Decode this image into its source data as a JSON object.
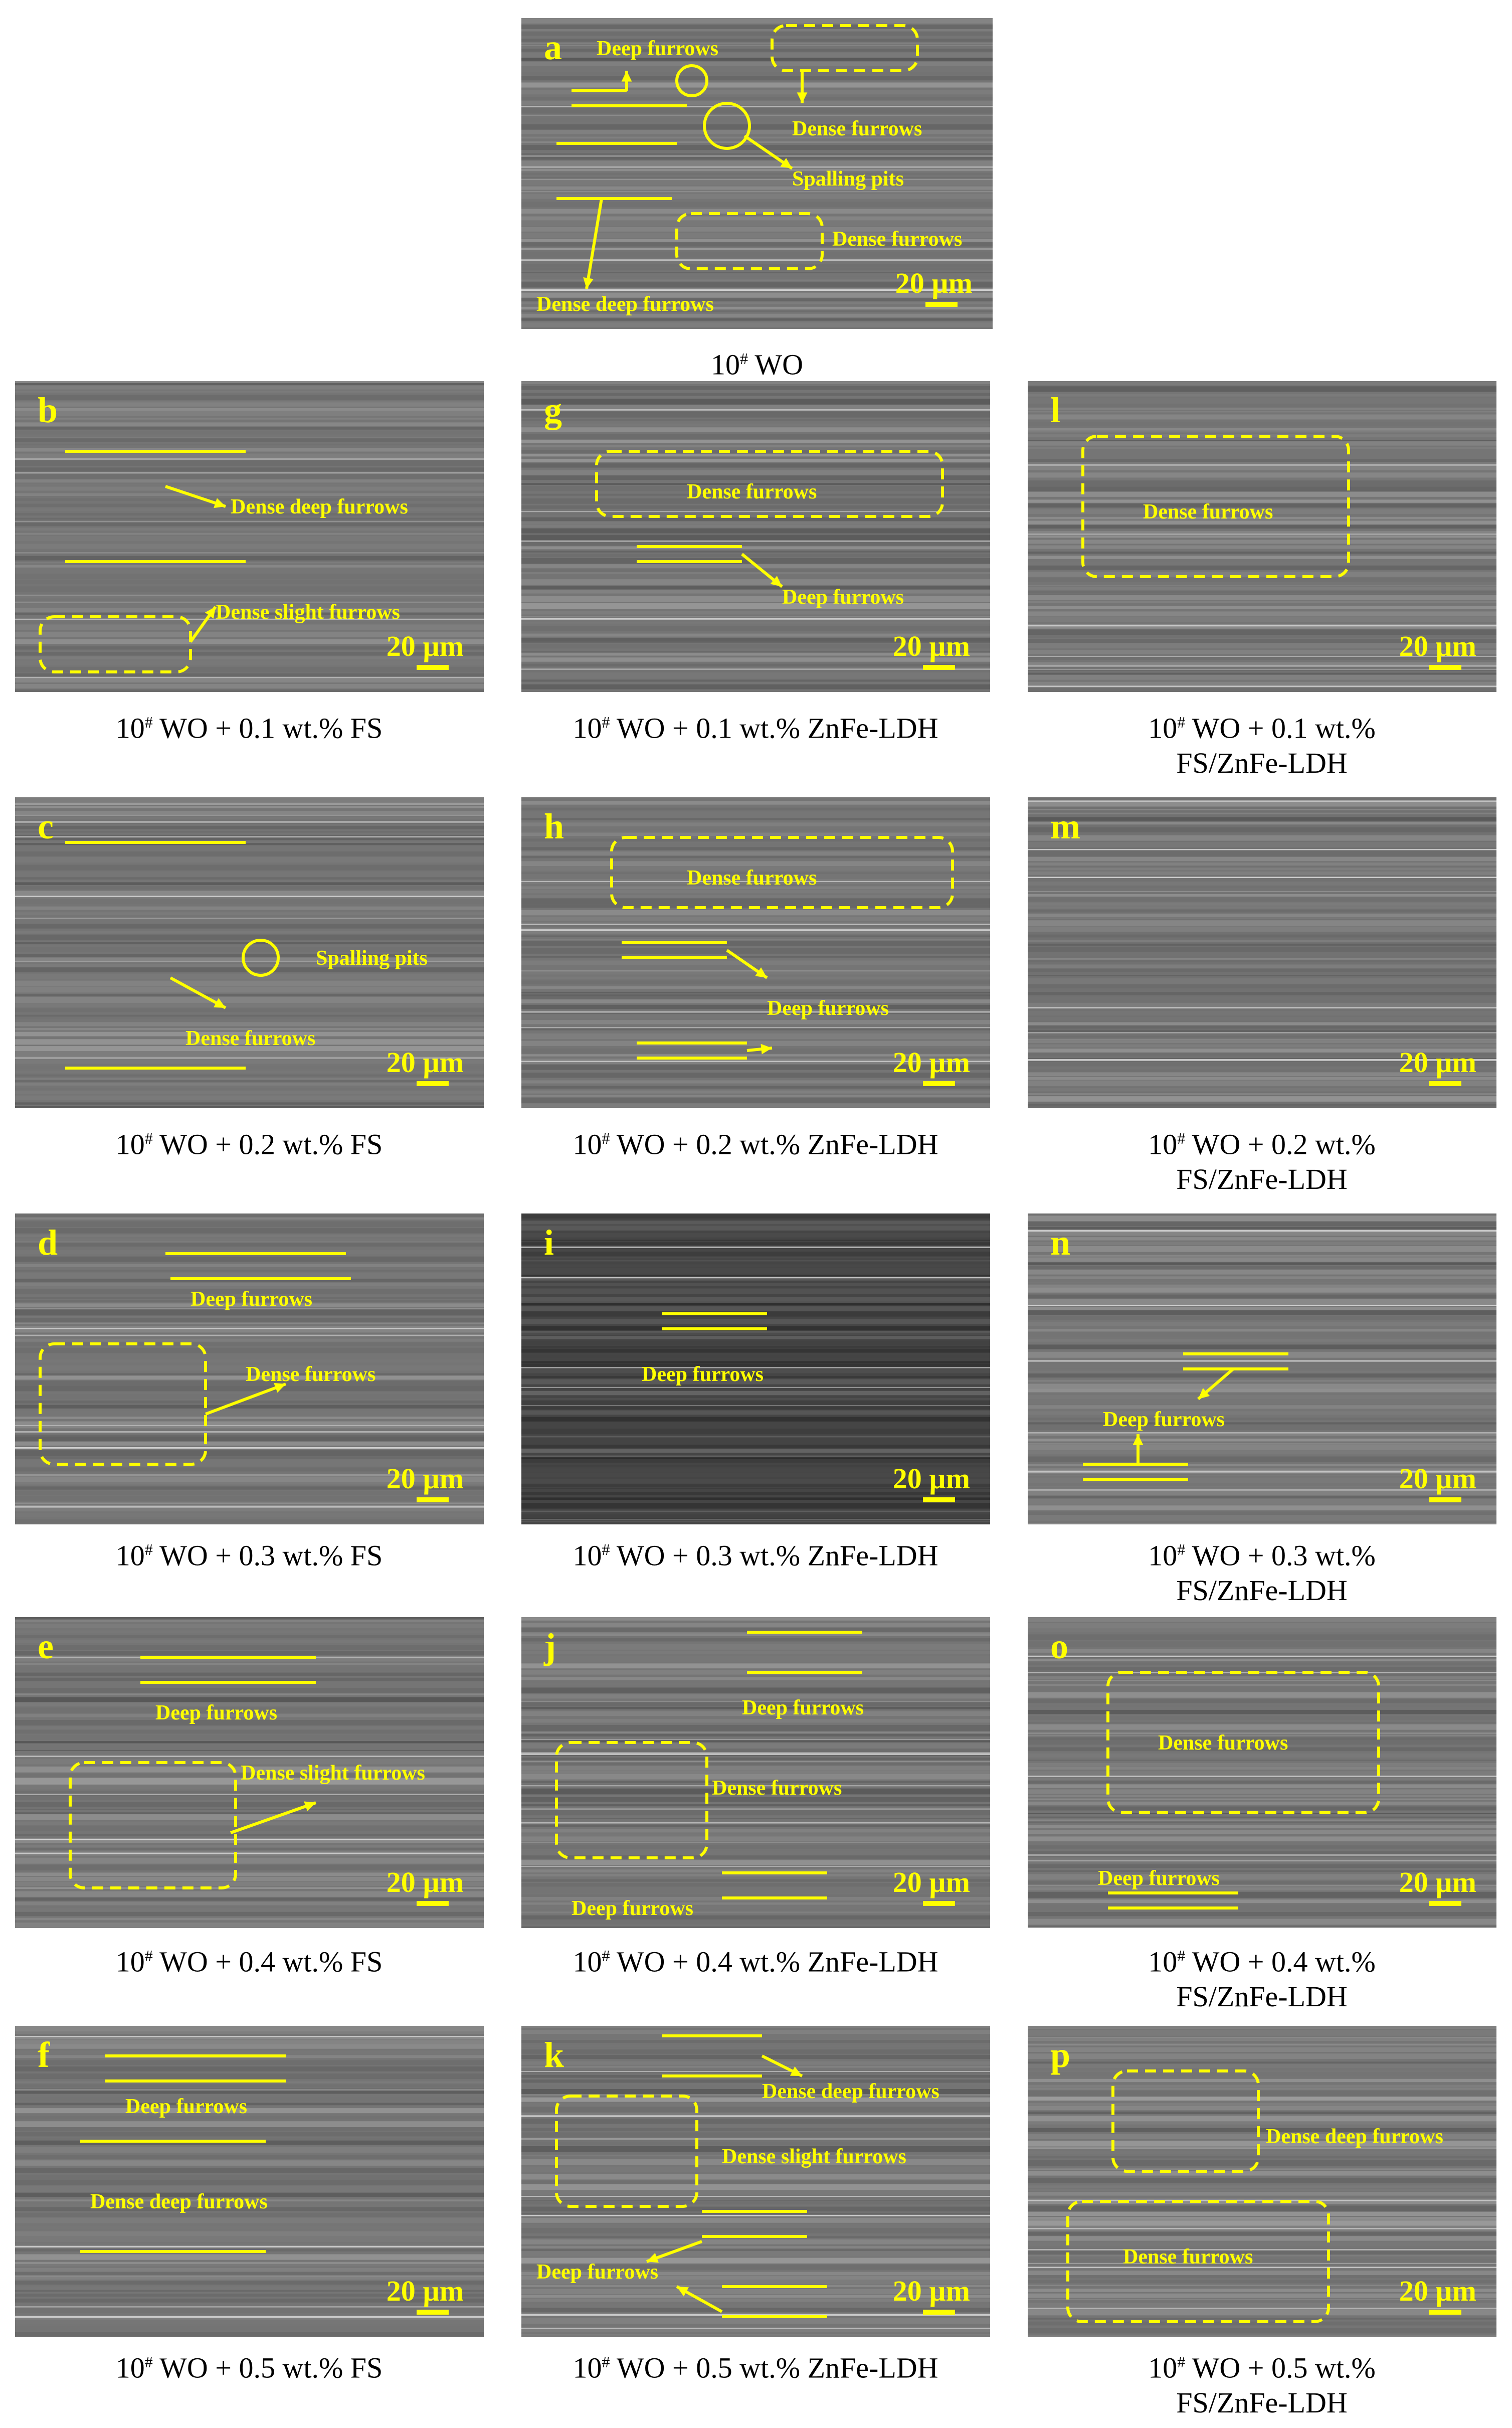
{
  "colors": {
    "annotation": "#ffff00",
    "caption": "#000000"
  },
  "panels": [
    {
      "id": "a",
      "letter": "a",
      "scale": "20 µm",
      "caption_pre": "10",
      "caption_sup": "#",
      "caption_post": " WO",
      "caption_line2": "",
      "annotations": [
        "Deep furrows",
        "Dense furrows",
        "Spalling pits",
        "Dense furrows",
        "Dense deep furrows"
      ]
    },
    {
      "id": "b",
      "letter": "b",
      "scale": "20 µm",
      "caption_pre": "10",
      "caption_sup": "#",
      "caption_post": " WO + 0.1 wt.% FS",
      "caption_line2": "",
      "annotations": [
        "Dense deep furrows",
        "Dense slight furrows"
      ]
    },
    {
      "id": "g",
      "letter": "g",
      "scale": "20 µm",
      "caption_pre": "10",
      "caption_sup": "#",
      "caption_post": " WO + 0.1 wt.% ZnFe-LDH",
      "caption_line2": "",
      "annotations": [
        "Dense furrows",
        "Deep furrows"
      ]
    },
    {
      "id": "l",
      "letter": "l",
      "scale": "20 µm",
      "caption_pre": "10",
      "caption_sup": "#",
      "caption_post": " WO + 0.1 wt.%",
      "caption_line2": "FS/ZnFe-LDH",
      "annotations": [
        "Dense furrows"
      ]
    },
    {
      "id": "c",
      "letter": "c",
      "scale": "20 µm",
      "caption_pre": "10",
      "caption_sup": "#",
      "caption_post": " WO + 0.2 wt.% FS",
      "caption_line2": "",
      "annotations": [
        "Spalling pits",
        "Dense furrows"
      ]
    },
    {
      "id": "h",
      "letter": "h",
      "scale": "20 µm",
      "caption_pre": "10",
      "caption_sup": "#",
      "caption_post": " WO + 0.2 wt.% ZnFe-LDH",
      "caption_line2": "",
      "annotations": [
        "Dense furrows",
        "Deep furrows"
      ]
    },
    {
      "id": "m",
      "letter": "m",
      "scale": "20 µm",
      "caption_pre": "10",
      "caption_sup": "#",
      "caption_post": " WO + 0.2 wt.%",
      "caption_line2": "FS/ZnFe-LDH",
      "annotations": []
    },
    {
      "id": "d",
      "letter": "d",
      "scale": "20 µm",
      "caption_pre": "10",
      "caption_sup": "#",
      "caption_post": " WO + 0.3 wt.% FS",
      "caption_line2": "",
      "annotations": [
        "Deep furrows",
        "Dense furrows"
      ]
    },
    {
      "id": "i",
      "letter": "i",
      "scale": "20 µm",
      "caption_pre": "10",
      "caption_sup": "#",
      "caption_post": " WO + 0.3 wt.% ZnFe-LDH",
      "caption_line2": "",
      "annotations": [
        "Deep furrows"
      ]
    },
    {
      "id": "n",
      "letter": "n",
      "scale": "20 µm",
      "caption_pre": "10",
      "caption_sup": "#",
      "caption_post": " WO + 0.3 wt.%",
      "caption_line2": "FS/ZnFe-LDH",
      "annotations": [
        "Deep furrows"
      ]
    },
    {
      "id": "e",
      "letter": "e",
      "scale": "20 µm",
      "caption_pre": "10",
      "caption_sup": "#",
      "caption_post": " WO + 0.4 wt.% FS",
      "caption_line2": "",
      "annotations": [
        "Deep furrows",
        "Dense slight furrows"
      ]
    },
    {
      "id": "j",
      "letter": "j",
      "scale": "20 µm",
      "caption_pre": "10",
      "caption_sup": "#",
      "caption_post": " WO + 0.4 wt.% ZnFe-LDH",
      "caption_line2": "",
      "annotations": [
        "Deep furrows",
        "Dense furrows",
        "Deep furrows"
      ]
    },
    {
      "id": "o",
      "letter": "o",
      "scale": "20 µm",
      "caption_pre": "10",
      "caption_sup": "#",
      "caption_post": " WO + 0.4 wt.%",
      "caption_line2": "FS/ZnFe-LDH",
      "annotations": [
        "Dense furrows",
        "Deep furrows"
      ]
    },
    {
      "id": "f",
      "letter": "f",
      "scale": "20 µm",
      "caption_pre": "10",
      "caption_sup": "#",
      "caption_post": " WO + 0.5 wt.% FS",
      "caption_line2": "",
      "annotations": [
        "Deep furrows",
        "Dense deep furrows"
      ]
    },
    {
      "id": "k",
      "letter": "k",
      "scale": "20 µm",
      "caption_pre": "10",
      "caption_sup": "#",
      "caption_post": " WO + 0.5 wt.% ZnFe-LDH",
      "caption_line2": "",
      "annotations": [
        "Dense deep furrows",
        "Dense slight furrows",
        "Deep furrows"
      ]
    },
    {
      "id": "p",
      "letter": "p",
      "scale": "20 µm",
      "caption_pre": "10",
      "caption_sup": "#",
      "caption_post": " WO + 0.5 wt.%",
      "caption_line2": "FS/ZnFe-LDH",
      "annotations": [
        "Dense deep furrows",
        "Dense furrows"
      ]
    }
  ]
}
